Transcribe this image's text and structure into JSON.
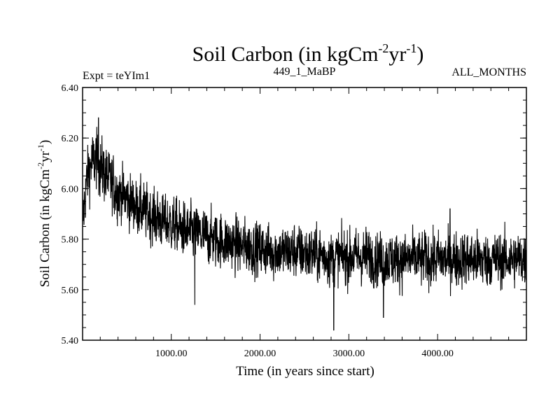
{
  "chart_data": {
    "type": "line",
    "title": {
      "main": "Soil Carbon (in kgCm",
      "sup1": "-2",
      "mid": "yr",
      "sup2": "-1",
      "end": ")"
    },
    "subtitle_left": "Expt = teYIm1",
    "subtitle_center": "449_1_MaBP",
    "subtitle_right": "ALL_MONTHS",
    "xlabel": "Time (in years since start)",
    "ylabel": {
      "main": "Soil Carbon (in kgCm",
      "sup1": "-2",
      "mid": "yr",
      "sup2": "-1",
      "end": ")"
    },
    "xlim": [
      1,
      5000
    ],
    "ylim": [
      5.4,
      6.4
    ],
    "x_ticks": [
      1000,
      2000,
      3000,
      4000
    ],
    "x_tick_labels": [
      "1000.00",
      "2000.00",
      "3000.00",
      "4000.00"
    ],
    "y_ticks": [
      5.4,
      5.6,
      5.8,
      6.0,
      6.2,
      6.4
    ],
    "y_tick_labels": [
      "5.40",
      "5.60",
      "5.80",
      "6.00",
      "6.20",
      "6.40"
    ],
    "series": [
      {
        "name": "Soil Carbon",
        "color": "#000000",
        "x": [
          1,
          30,
          60,
          100,
          150,
          200,
          250,
          300,
          400,
          500,
          600,
          700,
          800,
          900,
          1000,
          1100,
          1200,
          1300,
          1400,
          1500,
          1600,
          1700,
          1800,
          1900,
          2000,
          2200,
          2400,
          2600,
          2800,
          3000,
          3200,
          3400,
          3600,
          3800,
          4000,
          4200,
          4400,
          4600,
          4800,
          5000
        ],
        "mean": [
          5.85,
          5.98,
          6.06,
          6.1,
          6.11,
          6.09,
          6.06,
          6.03,
          5.99,
          5.96,
          5.93,
          5.91,
          5.89,
          5.87,
          5.86,
          5.84,
          5.83,
          5.82,
          5.81,
          5.8,
          5.79,
          5.78,
          5.77,
          5.77,
          5.76,
          5.75,
          5.75,
          5.74,
          5.73,
          5.73,
          5.73,
          5.72,
          5.72,
          5.72,
          5.72,
          5.72,
          5.72,
          5.72,
          5.72,
          5.72
        ],
        "noise_amplitude": 0.065,
        "spikes": [
          {
            "x": 180,
            "y": 6.28
          },
          {
            "x": 1265,
            "y": 5.54
          },
          {
            "x": 2830,
            "y": 5.44
          },
          {
            "x": 3390,
            "y": 5.49
          },
          {
            "x": 4140,
            "y": 5.92
          }
        ]
      }
    ]
  }
}
